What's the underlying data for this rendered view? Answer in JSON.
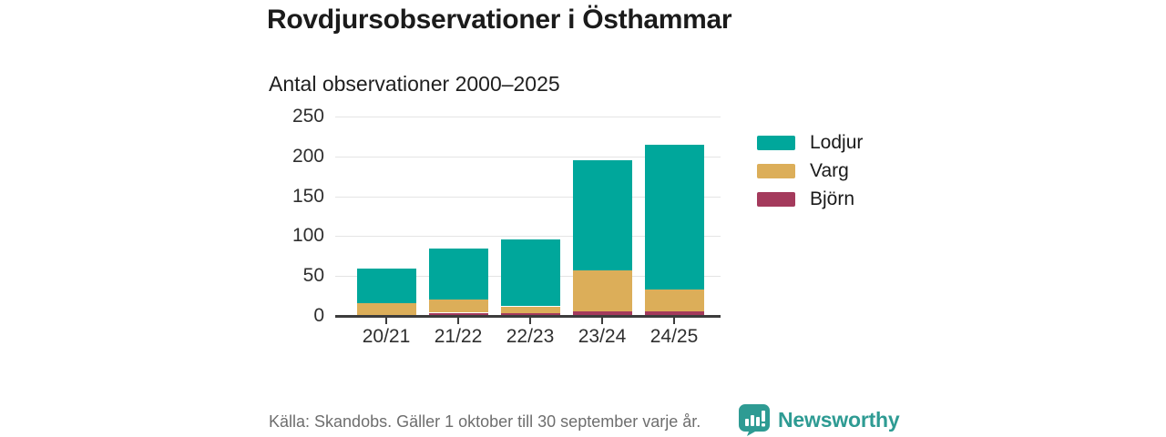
{
  "title": "Rovdjursobservationer i Östhammar",
  "subtitle": "Antal observationer 2000–2025",
  "footer": {
    "source_text": "Källa: Skandobs. Gäller 1 oktober till 30 september varje år.",
    "brand": "Newsworthy",
    "brand_color": "#2E9B93",
    "logo_icon": "bar-chart-speech-bubble-icon"
  },
  "colors": {
    "lodjur": "#00A79B",
    "varg": "#DCAE59",
    "bjorn": "#A43A5C",
    "gridline": "#E4E4E4",
    "axis": "#3C3C3C",
    "text_dark": "#1A1A1A",
    "text_muted": "#6E6E6E"
  },
  "chart_data": {
    "type": "bar",
    "stacked": true,
    "title": "Rovdjursobservationer i Östhammar",
    "subtitle": "Antal observationer 2000–2025",
    "categories": [
      "20/21",
      "21/22",
      "22/23",
      "23/24",
      "24/25"
    ],
    "series": [
      {
        "name": "Björn",
        "color": "#A43A5C",
        "values": [
          1,
          4,
          3,
          6,
          6
        ]
      },
      {
        "name": "Varg",
        "color": "#DCAE59",
        "values": [
          15,
          17,
          9,
          51,
          27
        ]
      },
      {
        "name": "Lodjur",
        "color": "#00A79B",
        "values": [
          43,
          63,
          84,
          138,
          182
        ]
      }
    ],
    "totals": [
      59,
      84,
      96,
      195,
      215
    ],
    "ylim": [
      0,
      250
    ],
    "yticks": [
      0,
      50,
      100,
      150,
      200,
      250
    ],
    "grid": true,
    "legend_position": "right",
    "legend_order": [
      "Lodjur",
      "Varg",
      "Björn"
    ]
  }
}
